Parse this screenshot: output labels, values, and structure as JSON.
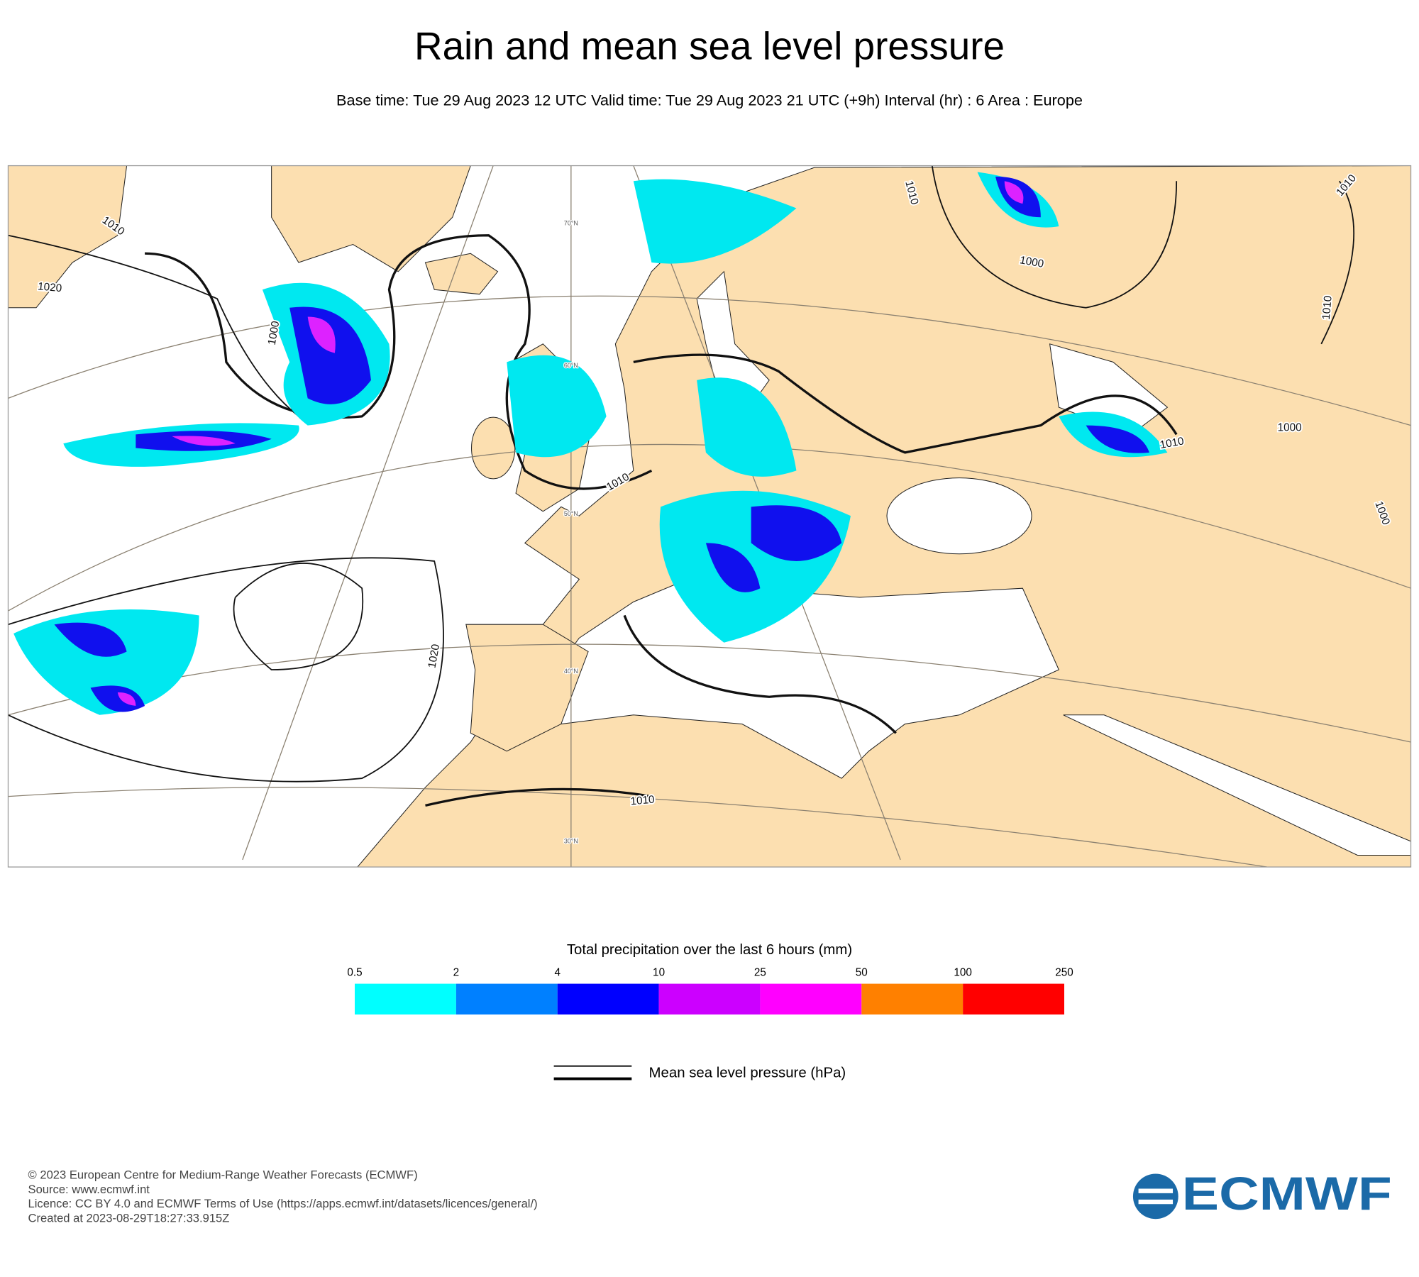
{
  "header": {
    "title": "Rain and mean sea level pressure",
    "subtitle": "Base time: Tue 29 Aug 2023 12 UTC Valid time: Tue 29 Aug 2023 21 UTC (+9h) Interval (hr) : 6 Area : Europe"
  },
  "map": {
    "contour_labels": [
      "1010",
      "1020",
      "1000",
      "1010",
      "1020",
      "1010",
      "1010",
      "1000",
      "1010",
      "1010",
      "1000",
      "1010",
      "1000"
    ],
    "latitude_labels": [
      "70°N",
      "60°N",
      "50°N",
      "40°N",
      "30°N"
    ]
  },
  "legend": {
    "colorbar": {
      "title": "Total precipitation over the last 6 hours (mm)",
      "ticks": [
        0.5,
        2,
        4,
        10,
        25,
        50,
        100,
        250
      ],
      "colors": [
        "#00ffff",
        "#0080ff",
        "#0000ff",
        "#cc00ff",
        "#ff00ff",
        "#ff8000",
        "#ff0000"
      ]
    },
    "line_label": "Mean sea level pressure (hPa)"
  },
  "footer": {
    "lines": [
      "© 2023 European Centre for Medium-Range Weather Forecasts (ECMWF)",
      "Source: www.ecmwf.int",
      "Licence: CC BY 4.0 and ECMWF Terms of Use (https://apps.ecmwf.int/datasets/licences/general/)",
      "Created at 2023-08-29T18:27:33.915Z"
    ],
    "logo": "ECMWF"
  }
}
